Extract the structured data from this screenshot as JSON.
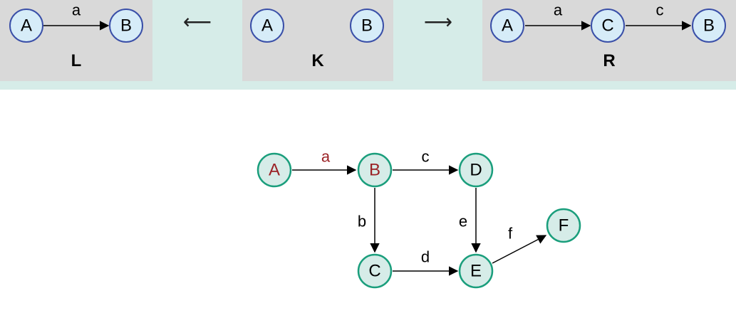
{
  "rule": {
    "left": {
      "label": "L",
      "nodes": [
        "A",
        "B"
      ],
      "edge_label": "a"
    },
    "interface": {
      "label": "K",
      "nodes": [
        "A",
        "B"
      ]
    },
    "right": {
      "label": "R",
      "nodes": [
        "A",
        "C",
        "B"
      ],
      "edge_labels": [
        "a",
        "c"
      ]
    },
    "left_morphism": "⟵",
    "right_morphism": "⟶"
  },
  "host_graph": {
    "nodes": {
      "A": "A",
      "B": "B",
      "C": "C",
      "D": "D",
      "E": "E",
      "F": "F"
    },
    "edges": {
      "a": "a",
      "b": "b",
      "c": "c",
      "d": "d",
      "e": "e",
      "f": "f"
    },
    "highlight_color": "#9b2226",
    "node_border_color": "#1a9e7c",
    "node_fill_color": "#d6ece8"
  }
}
